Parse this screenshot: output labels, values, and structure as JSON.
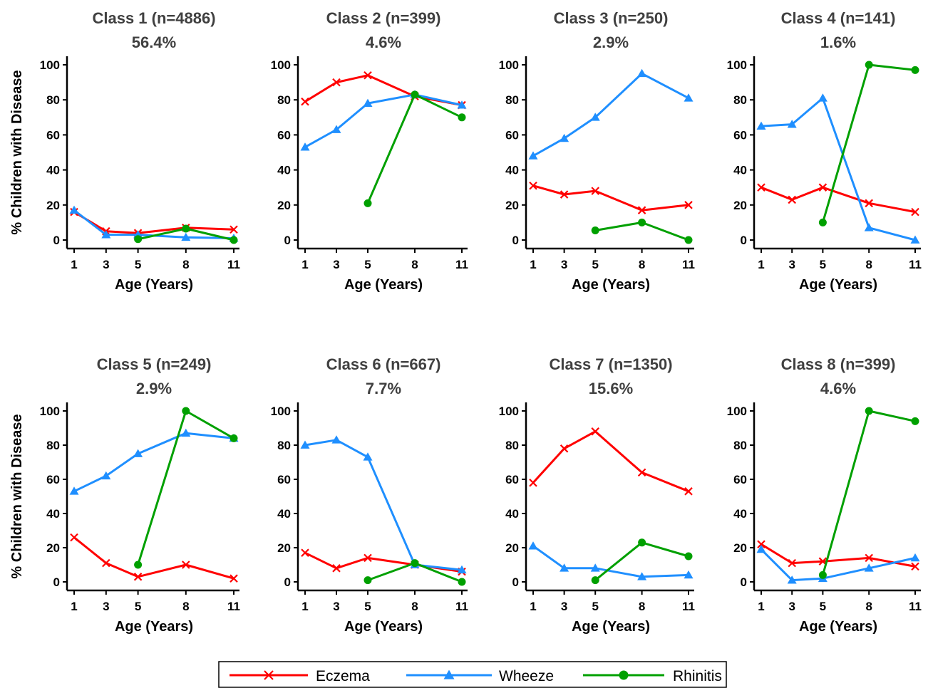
{
  "chart_data": {
    "type": "line",
    "y_axis_label": "% Children with Disease",
    "x_axis_label": "Age (Years)",
    "x_ticks": [
      1,
      3,
      5,
      8,
      11
    ],
    "y_ticks": [
      0,
      20,
      40,
      60,
      80,
      100
    ],
    "xlim": [
      1,
      11
    ],
    "ylim": [
      0,
      100
    ],
    "grid": false,
    "legend_placement": "bottom-center",
    "legend": [
      {
        "name": "Eczema",
        "color": "#ff0000",
        "marker": "x"
      },
      {
        "name": "Wheeze",
        "color": "#1f8fff",
        "marker": "triangle"
      },
      {
        "name": "Rhinitis",
        "color": "#00a000",
        "marker": "circle"
      }
    ],
    "panels": [
      {
        "title": "Class 1 (n=4886)",
        "percent": "56.4%",
        "series": {
          "Eczema": [
            [
              1,
              16
            ],
            [
              3,
              5
            ],
            [
              5,
              4
            ],
            [
              8,
              7
            ],
            [
              11,
              6
            ]
          ],
          "Wheeze": [
            [
              1,
              17
            ],
            [
              3,
              3
            ],
            [
              5,
              3
            ],
            [
              8,
              1.5
            ],
            [
              11,
              1
            ]
          ],
          "Rhinitis": [
            [
              5,
              0.5
            ],
            [
              8,
              6.5
            ],
            [
              11,
              0
            ]
          ]
        }
      },
      {
        "title": "Class 2 (n=399)",
        "percent": "4.6%",
        "series": {
          "Eczema": [
            [
              1,
              79
            ],
            [
              3,
              90
            ],
            [
              5,
              94
            ],
            [
              8,
              82
            ],
            [
              11,
              77
            ]
          ],
          "Wheeze": [
            [
              1,
              53
            ],
            [
              3,
              63
            ],
            [
              5,
              78
            ],
            [
              8,
              83
            ],
            [
              11,
              77
            ]
          ],
          "Rhinitis": [
            [
              5,
              21
            ],
            [
              8,
              83
            ],
            [
              11,
              70
            ]
          ]
        }
      },
      {
        "title": "Class 3 (n=250)",
        "percent": "2.9%",
        "series": {
          "Eczema": [
            [
              1,
              31
            ],
            [
              3,
              26
            ],
            [
              5,
              28
            ],
            [
              8,
              17
            ],
            [
              11,
              20
            ]
          ],
          "Wheeze": [
            [
              1,
              48
            ],
            [
              3,
              58
            ],
            [
              5,
              70
            ],
            [
              8,
              95
            ],
            [
              11,
              81
            ]
          ],
          "Rhinitis": [
            [
              5,
              5.5
            ],
            [
              8,
              10
            ],
            [
              11,
              0
            ]
          ]
        }
      },
      {
        "title": "Class 4 (n=141)",
        "percent": "1.6%",
        "series": {
          "Eczema": [
            [
              1,
              30
            ],
            [
              3,
              23
            ],
            [
              5,
              30
            ],
            [
              8,
              21
            ],
            [
              11,
              16
            ]
          ],
          "Wheeze": [
            [
              1,
              65
            ],
            [
              3,
              66
            ],
            [
              5,
              81
            ],
            [
              8,
              7
            ],
            [
              11,
              0
            ]
          ],
          "Rhinitis": [
            [
              5,
              10
            ],
            [
              8,
              100
            ],
            [
              11,
              97
            ]
          ]
        }
      },
      {
        "title": "Class 5 (n=249)",
        "percent": "2.9%",
        "series": {
          "Eczema": [
            [
              1,
              26
            ],
            [
              3,
              11
            ],
            [
              5,
              3
            ],
            [
              8,
              10
            ],
            [
              11,
              2
            ]
          ],
          "Wheeze": [
            [
              1,
              53
            ],
            [
              3,
              62
            ],
            [
              5,
              75
            ],
            [
              8,
              87
            ],
            [
              11,
              84
            ]
          ],
          "Rhinitis": [
            [
              5,
              10
            ],
            [
              8,
              100
            ],
            [
              11,
              84
            ]
          ]
        }
      },
      {
        "title": "Class 6 (n=667)",
        "percent": "7.7%",
        "series": {
          "Eczema": [
            [
              1,
              17
            ],
            [
              3,
              8
            ],
            [
              5,
              14
            ],
            [
              8,
              10
            ],
            [
              11,
              6
            ]
          ],
          "Wheeze": [
            [
              1,
              80
            ],
            [
              3,
              83
            ],
            [
              5,
              73
            ],
            [
              8,
              10
            ],
            [
              11,
              7
            ]
          ],
          "Rhinitis": [
            [
              5,
              1
            ],
            [
              8,
              11
            ],
            [
              11,
              0
            ]
          ]
        }
      },
      {
        "title": "Class 7 (n=1350)",
        "percent": "15.6%",
        "series": {
          "Eczema": [
            [
              1,
              58
            ],
            [
              3,
              78
            ],
            [
              5,
              88
            ],
            [
              8,
              64
            ],
            [
              11,
              53
            ]
          ],
          "Wheeze": [
            [
              1,
              21
            ],
            [
              3,
              8
            ],
            [
              5,
              8
            ],
            [
              8,
              3
            ],
            [
              11,
              4
            ]
          ],
          "Rhinitis": [
            [
              5,
              1
            ],
            [
              8,
              23
            ],
            [
              11,
              15
            ]
          ]
        }
      },
      {
        "title": "Class 8 (n=399)",
        "percent": "4.6%",
        "series": {
          "Eczema": [
            [
              1,
              22
            ],
            [
              3,
              11
            ],
            [
              5,
              12
            ],
            [
              8,
              14
            ],
            [
              11,
              9
            ]
          ],
          "Wheeze": [
            [
              1,
              19
            ],
            [
              3,
              1
            ],
            [
              5,
              2
            ],
            [
              8,
              8
            ],
            [
              11,
              14
            ]
          ],
          "Rhinitis": [
            [
              5,
              4
            ],
            [
              8,
              100
            ],
            [
              11,
              94
            ]
          ]
        }
      }
    ]
  }
}
